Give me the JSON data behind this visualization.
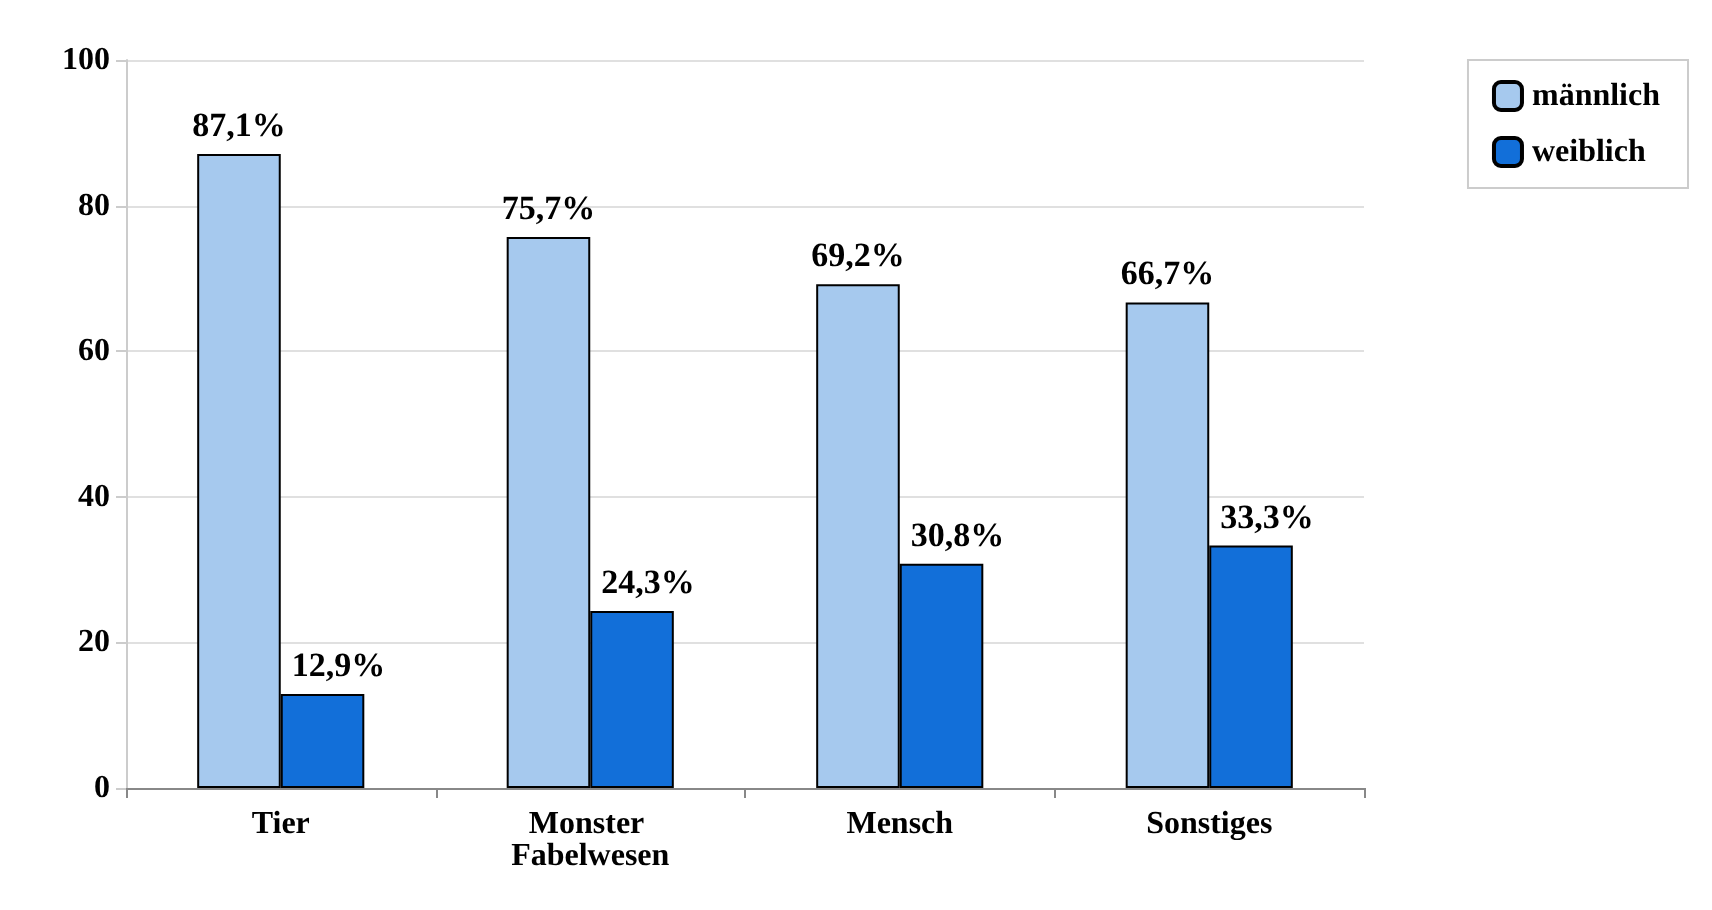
{
  "chart_data": {
    "type": "bar",
    "categories": [
      "Tier",
      "Monster Fabelwesen",
      "Mensch",
      "Sonstiges"
    ],
    "series": [
      {
        "name": "männlich",
        "color": "#a6c9ee",
        "values": [
          87.1,
          75.7,
          69.2,
          66.7
        ],
        "value_labels": [
          "87,1%",
          "75,7%",
          "69,2%",
          "66,7%"
        ]
      },
      {
        "name": "weiblich",
        "color": "#126fd9",
        "values": [
          12.9,
          24.3,
          30.8,
          33.3
        ],
        "value_labels": [
          "12,9%",
          "24,3%",
          "30,8%",
          "33,3%"
        ]
      }
    ],
    "ylim": [
      0,
      100
    ],
    "yticks": [
      0,
      20,
      40,
      60,
      80,
      100
    ],
    "grid": "y",
    "legend": "top right"
  }
}
